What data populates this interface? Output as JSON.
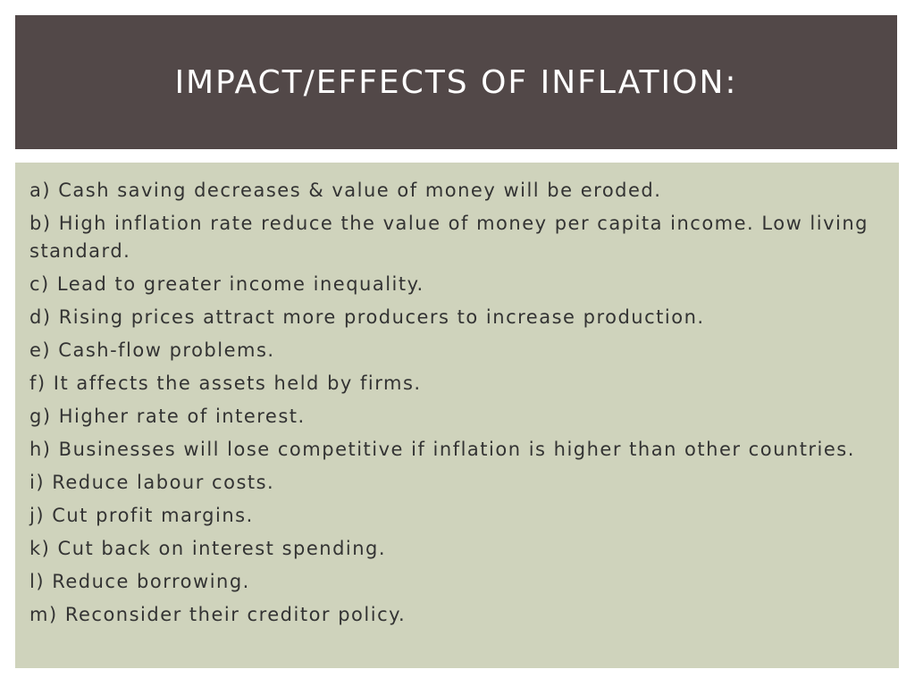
{
  "header": {
    "title": "IMPACT/EFFECTS OF INFLATION:"
  },
  "items": [
    "a) Cash saving decreases & value of money will be eroded.",
    "b) High inflation rate reduce the value of money per capita income. Low living standard.",
    "c) Lead to greater income inequality.",
    "d) Rising prices attract more producers to increase production.",
    "e) Cash-flow problems.",
    "f) It affects the assets held by firms.",
    "g) Higher rate of interest.",
    "h) Businesses will lose competitive if inflation is higher than other countries.",
    "i) Reduce labour costs.",
    "j) Cut profit margins.",
    "k) Cut back on interest spending.",
    "l) Reduce borrowing.",
    "m) Reconsider their creditor policy."
  ]
}
